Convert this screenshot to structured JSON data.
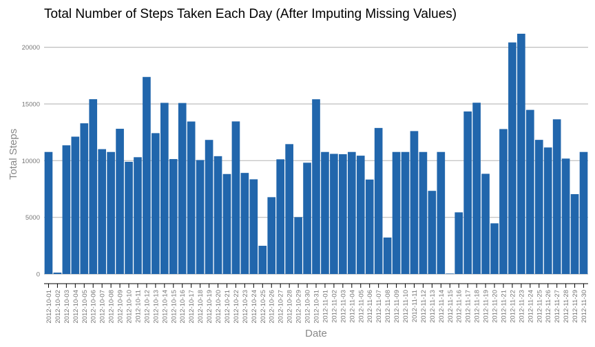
{
  "chart_data": {
    "type": "bar",
    "title": "Total Number of Steps Taken Each Day (After Imputing Missing Values)",
    "xlabel": "Date",
    "ylabel": "Total Steps",
    "ylim": [
      0,
      21194
    ],
    "yticks": [
      0,
      5000,
      10000,
      15000,
      20000
    ],
    "grid": true,
    "bar_color": "#2166ac",
    "categories": [
      "2012-10-01",
      "2012-10-02",
      "2012-10-03",
      "2012-10-04",
      "2012-10-05",
      "2012-10-06",
      "2012-10-07",
      "2012-10-08",
      "2012-10-09",
      "2012-10-10",
      "2012-10-11",
      "2012-10-12",
      "2012-10-13",
      "2012-10-14",
      "2012-10-15",
      "2012-10-16",
      "2012-10-17",
      "2012-10-18",
      "2012-10-19",
      "2012-10-20",
      "2012-10-21",
      "2012-10-22",
      "2012-10-23",
      "2012-10-24",
      "2012-10-25",
      "2012-10-26",
      "2012-10-27",
      "2012-10-28",
      "2012-10-29",
      "2012-10-30",
      "2012-10-31",
      "2012-11-01",
      "2012-11-02",
      "2012-11-03",
      "2012-11-04",
      "2012-11-05",
      "2012-11-06",
      "2012-11-07",
      "2012-11-08",
      "2012-11-09",
      "2012-11-10",
      "2012-11-11",
      "2012-11-12",
      "2012-11-13",
      "2012-11-14",
      "2012-11-15",
      "2012-11-16",
      "2012-11-17",
      "2012-11-18",
      "2012-11-19",
      "2012-11-20",
      "2012-11-21",
      "2012-11-22",
      "2012-11-23",
      "2012-11-24",
      "2012-11-25",
      "2012-11-26",
      "2012-11-27",
      "2012-11-28",
      "2012-11-29",
      "2012-11-30"
    ],
    "values": [
      10766,
      126,
      11352,
      12116,
      13294,
      15420,
      11015,
      10766,
      12811,
      9900,
      10304,
      17382,
      12426,
      15098,
      10139,
      15084,
      13452,
      10056,
      11829,
      10395,
      8821,
      13460,
      8918,
      8355,
      2492,
      6778,
      10119,
      11458,
      5018,
      9819,
      15414,
      10766,
      10600,
      10571,
      10766,
      10439,
      8334,
      12883,
      3219,
      10766,
      10766,
      12608,
      10765,
      7336,
      10766,
      41,
      5441,
      14339,
      15110,
      8841,
      4472,
      12787,
      20427,
      21194,
      14478,
      11834,
      11162,
      13646,
      10183,
      7047,
      10766
    ]
  }
}
